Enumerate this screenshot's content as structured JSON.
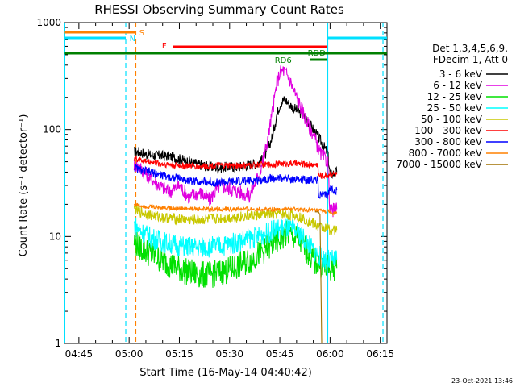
{
  "chart_data": {
    "type": "line",
    "title": "RHESSI Observing Summary Count Rates",
    "xlabel": "Start Time (16-May-14 04:40:42)",
    "ylabel": "Count Rate (s⁻¹ detector⁻¹)",
    "x_ticks": [
      "04:45",
      "05:00",
      "05:15",
      "05:30",
      "05:45",
      "06:00",
      "06:15"
    ],
    "x_tick_minutes": [
      285,
      300,
      315,
      330,
      345,
      360,
      375
    ],
    "xlim_minutes": [
      280.7,
      377.0
    ],
    "y_scale": "log",
    "ylim": [
      1,
      1000
    ],
    "y_tick_labels": [
      "1",
      "10",
      "100",
      "1000"
    ],
    "y_ticks": [
      1,
      10,
      100,
      1000
    ],
    "legend_header": [
      "Det 1,3,4,5,6,9,",
      "FDecim 1, Att 0"
    ],
    "legend_position": "right",
    "timestamp": "23-Oct-2021 13:46",
    "series": [
      {
        "name": "3 - 6 keV",
        "color": "#000000",
        "x": [
          301.5,
          303,
          306,
          309,
          312,
          315,
          318,
          321,
          324,
          327,
          330,
          333,
          336,
          339,
          341,
          343,
          344,
          345,
          346,
          347,
          348,
          349,
          351,
          353,
          355,
          357,
          359.3,
          360,
          362
        ],
        "y": [
          62,
          62,
          58,
          57,
          56,
          53,
          50,
          47,
          45,
          44,
          45,
          45,
          47,
          49,
          60,
          90,
          135,
          170,
          190,
          185,
          170,
          160,
          145,
          125,
          100,
          80,
          60,
          38,
          40
        ]
      },
      {
        "name": "6 - 12 keV",
        "color": "#e000e0",
        "x": [
          301.5,
          303,
          306,
          309,
          312,
          315,
          318,
          321,
          324,
          327,
          330,
          333,
          336,
          339,
          341,
          343,
          344,
          345,
          346,
          347,
          348,
          349,
          351,
          353,
          355,
          357,
          359.3,
          360,
          362
        ],
        "y": [
          47,
          45,
          36,
          30,
          26,
          30,
          23,
          26,
          22,
          30,
          28,
          26,
          24,
          40,
          70,
          160,
          260,
          340,
          360,
          330,
          290,
          240,
          170,
          120,
          90,
          60,
          50,
          17,
          18
        ]
      },
      {
        "name": "12 - 25 keV",
        "color": "#00e000",
        "x": [
          301.5,
          303,
          306,
          309,
          312,
          315,
          318,
          321,
          324,
          327,
          330,
          333,
          336,
          339,
          342,
          345,
          347,
          349,
          351,
          353,
          355,
          357,
          359.3,
          360,
          362
        ],
        "y": [
          9.0,
          8.0,
          7.0,
          6.2,
          5.5,
          5.0,
          4.6,
          4.4,
          4.4,
          4.6,
          4.9,
          5.4,
          6.0,
          7.0,
          8.0,
          9.5,
          10.5,
          10.0,
          9.0,
          7.5,
          6.0,
          5.5,
          5.0,
          5.0,
          5.0
        ]
      },
      {
        "name": "25 - 50 keV",
        "color": "#00ffff",
        "x": [
          301.5,
          303,
          306,
          309,
          312,
          315,
          318,
          321,
          324,
          327,
          330,
          333,
          336,
          339,
          342,
          345,
          347,
          349,
          351,
          353,
          355,
          357,
          359.3,
          360,
          362
        ],
        "y": [
          13.0,
          11.5,
          10.0,
          9.2,
          8.6,
          8.2,
          8.0,
          7.9,
          8.0,
          8.2,
          8.5,
          9.0,
          9.6,
          10.2,
          11.0,
          12.0,
          12.0,
          11.5,
          10.5,
          9.0,
          7.5,
          6.5,
          6.0,
          6.0,
          6.0
        ]
      },
      {
        "name": "50 - 100 keV",
        "color": "#c8c800",
        "x": [
          301.5,
          303,
          306,
          309,
          312,
          315,
          318,
          321,
          324,
          327,
          330,
          333,
          336,
          339,
          342,
          345,
          347,
          349,
          351,
          353,
          355,
          357,
          359.3,
          360,
          362
        ],
        "y": [
          18.0,
          17.0,
          16.0,
          15.3,
          14.8,
          14.5,
          14.3,
          14.3,
          14.5,
          14.7,
          15.0,
          15.3,
          15.6,
          15.9,
          16.0,
          16.3,
          16.0,
          15.8,
          15.2,
          14.2,
          13.2,
          12.2,
          12.0,
          11.5,
          11.5
        ]
      },
      {
        "name": "100 - 300 keV",
        "color": "#ff0000",
        "x": [
          301.5,
          303,
          306,
          309,
          312,
          315,
          318,
          321,
          324,
          327,
          330,
          333,
          336,
          339,
          342,
          345,
          347,
          349,
          351,
          353,
          355,
          356.4,
          356.5,
          358,
          359.3,
          360,
          362
        ],
        "y": [
          54,
          52,
          50,
          48,
          47,
          46,
          46,
          45,
          46,
          46,
          46,
          46,
          46,
          47,
          47,
          48,
          48,
          48,
          48,
          47,
          47,
          47,
          37,
          37,
          37,
          39,
          38
        ]
      },
      {
        "name": "300 - 800 keV",
        "color": "#0000ff",
        "x": [
          301.5,
          303,
          306,
          309,
          312,
          315,
          318,
          321,
          324,
          327,
          330,
          333,
          336,
          339,
          342,
          345,
          347,
          349,
          351,
          353,
          355,
          356.4,
          356.5,
          358,
          359.3,
          360,
          362
        ],
        "y": [
          44,
          42,
          40,
          38,
          36,
          35,
          33,
          33,
          32,
          32,
          32,
          33,
          33,
          34,
          35,
          35,
          35,
          34,
          34,
          34,
          34,
          34,
          25,
          24,
          24,
          28,
          27
        ]
      },
      {
        "name": "800 - 7000 keV",
        "color": "#ff8000",
        "x": [
          301.5,
          303,
          306,
          309,
          312,
          315,
          318,
          321,
          324,
          327,
          330,
          333,
          336,
          339,
          342,
          345,
          348,
          351,
          354,
          357,
          359.3,
          360,
          362
        ],
        "y": [
          20.0,
          19.5,
          19.0,
          18.8,
          18.5,
          18.3,
          18.2,
          18.1,
          18.0,
          18.0,
          18.0,
          18.0,
          18.0,
          18.0,
          18.0,
          18.0,
          18.0,
          17.8,
          17.6,
          17.4,
          17.2,
          16.5,
          16.5
        ]
      },
      {
        "name": "7000 - 15000 keV",
        "color": "#a07000",
        "x": [
          355.5,
          356.0,
          356.5,
          357.0,
          357.5
        ],
        "y": [
          17.0,
          17.0,
          17.0,
          16.0,
          1.0
        ]
      }
    ],
    "vertical_lines": [
      {
        "minute": 280.8,
        "color": "#00e0ff",
        "style": "solid"
      },
      {
        "minute": 299.0,
        "color": "#00e0ff",
        "style": "dashed"
      },
      {
        "minute": 302.0,
        "color": "#ff8000",
        "style": "dashed"
      },
      {
        "minute": 359.3,
        "color": "#00e0ff",
        "style": "solid"
      },
      {
        "minute": 375.8,
        "color": "#00e0ff",
        "style": "dashed"
      }
    ],
    "status_bars": [
      {
        "label": "S",
        "color": "#ff8000",
        "x0": 280.8,
        "x1": 302.0,
        "y": 40
      },
      {
        "label": "N",
        "color": "#00e0ff",
        "x0": 280.8,
        "x1": 299.0,
        "y": 47
      },
      {
        "label": "F",
        "color": "#ff0000",
        "x0": 313.0,
        "x1": 359.0,
        "y": 58
      },
      {
        "label": "",
        "color": "#00e0ff",
        "x0": 359.4,
        "x1": 377.0,
        "y": 47
      },
      {
        "label": "",
        "color": "#008000",
        "x0": 280.8,
        "x1": 377.0,
        "y": 66
      },
      {
        "label": "RDD",
        "color": "#008000",
        "x0": 354.0,
        "x1": 359.0,
        "y": 74
      }
    ],
    "status_labels": [
      {
        "text": "S",
        "color": "#ff8000",
        "minute": 303.8,
        "y": 44
      },
      {
        "text": "N",
        "color": "#00e0ff",
        "minute": 301.0,
        "y": 51
      },
      {
        "text": "F",
        "color": "#ff0000",
        "minute": 310.5,
        "y": 60
      },
      {
        "text": "RDD",
        "color": "#008000",
        "minute": 356.0,
        "y": 69
      },
      {
        "text": "RD6",
        "color": "#008000",
        "minute": 346.0,
        "y": 78
      }
    ]
  }
}
